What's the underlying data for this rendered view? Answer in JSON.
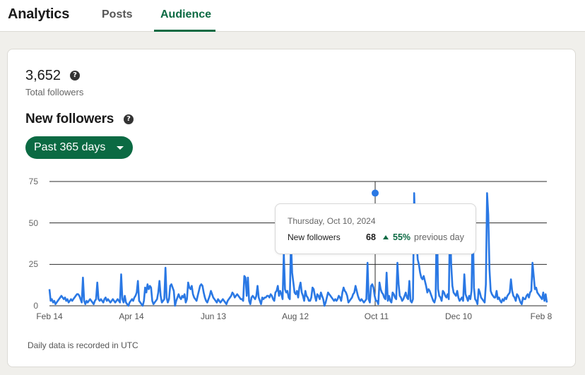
{
  "header": {
    "title": "Analytics",
    "tabs": [
      {
        "label": "Posts",
        "active": false
      },
      {
        "label": "Audience",
        "active": true
      }
    ]
  },
  "summary": {
    "total_followers": "3,652",
    "total_followers_label": "Total followers",
    "help_icon": "?"
  },
  "section": {
    "title": "New followers",
    "help_icon": "?",
    "range_label": "Past 365 days"
  },
  "tooltip": {
    "date": "Thursday, Oct 10, 2024",
    "label": "New followers",
    "value": "68",
    "change": "55%",
    "change_suffix": "previous day",
    "change_direction": "up"
  },
  "footnote": "Daily data is recorded in UTC",
  "colors": {
    "accent": "#0b6a43",
    "line": "#2a78e4",
    "background": "#f0efeb"
  },
  "chart_data": {
    "type": "line",
    "title": "New followers",
    "xlabel": "",
    "ylabel": "",
    "ylim": [
      0,
      75
    ],
    "yticks": [
      0,
      25,
      50,
      75
    ],
    "xtick_labels": [
      "Feb 14",
      "Apr 14",
      "Jun 13",
      "Aug 12",
      "Oct 11",
      "Dec 10",
      "Feb 8"
    ],
    "grid": true,
    "legend": "none",
    "highlight": {
      "date": "Oct 10, 2024",
      "value": 68,
      "change_pct": 55
    },
    "series": [
      {
        "name": "New followers",
        "values": [
          10,
          3,
          4,
          2,
          3,
          1,
          2,
          3,
          4,
          5,
          6,
          5,
          4,
          5,
          3,
          4,
          2,
          3,
          4,
          3,
          4,
          5,
          6,
          7,
          7,
          6,
          4,
          2,
          17,
          3,
          1,
          3,
          2,
          3,
          4,
          3,
          2,
          1,
          3,
          4,
          14,
          4,
          3,
          4,
          3,
          2,
          4,
          5,
          3,
          4,
          3,
          2,
          3,
          4,
          3,
          2,
          3,
          4,
          3,
          2,
          19,
          4,
          2,
          6,
          2,
          1,
          0,
          2,
          3,
          4,
          3,
          5,
          6,
          8,
          15,
          3,
          2,
          1,
          0,
          3,
          11,
          8,
          13,
          10,
          12,
          11,
          3,
          1,
          2,
          3,
          4,
          8,
          15,
          6,
          2,
          3,
          4,
          23,
          5,
          2,
          4,
          12,
          13,
          11,
          9,
          0,
          3,
          5,
          7,
          5,
          4,
          6,
          5,
          7,
          2,
          4,
          14,
          11,
          10,
          12,
          7,
          5,
          4,
          3,
          6,
          9,
          12,
          13,
          12,
          8,
          5,
          3,
          2,
          4,
          6,
          9,
          7,
          5,
          4,
          3,
          2,
          4,
          3,
          2,
          3,
          4,
          3,
          2,
          1,
          3,
          4,
          5,
          6,
          8,
          7,
          5,
          6,
          7,
          6,
          5,
          4,
          4,
          3,
          18,
          17,
          6,
          17,
          3,
          1,
          5,
          6,
          5,
          4,
          6,
          12,
          5,
          3,
          1,
          5,
          4,
          5,
          5,
          6,
          6,
          5,
          7,
          6,
          4,
          3,
          8,
          9,
          12,
          6,
          9,
          7,
          4,
          32,
          10,
          8,
          9,
          5,
          4,
          39,
          20,
          14,
          8,
          7,
          9,
          5,
          11,
          14,
          8,
          6,
          3,
          9,
          6,
          5,
          3,
          3,
          5,
          11,
          10,
          6,
          3,
          7,
          6,
          4,
          8,
          6,
          4,
          0,
          2,
          5,
          8,
          7,
          6,
          5,
          4,
          3,
          4,
          3,
          4,
          6,
          5,
          3,
          8,
          11,
          9,
          8,
          6,
          2,
          3,
          4,
          5,
          7,
          8,
          12,
          9,
          6,
          4,
          3,
          4,
          3,
          2,
          3,
          4,
          26,
          4,
          2,
          12,
          13,
          11,
          6,
          3,
          3,
          1,
          14,
          10,
          8,
          7,
          5,
          4,
          20,
          3,
          6,
          3,
          2,
          8,
          7,
          5,
          4,
          26,
          13,
          6,
          5,
          3,
          4,
          6,
          8,
          5,
          4,
          15,
          3,
          2,
          4,
          68,
          44,
          40,
          28,
          25,
          20,
          17,
          16,
          18,
          15,
          12,
          8,
          10,
          9,
          7,
          5,
          3,
          2,
          5,
          57,
          10,
          6,
          5,
          3,
          9,
          8,
          6,
          5,
          7,
          4,
          52,
          25,
          12,
          8,
          7,
          6,
          9,
          5,
          3,
          4,
          5,
          3,
          19,
          7,
          5,
          3,
          6,
          4,
          9,
          52,
          11,
          4,
          3,
          1,
          10,
          8,
          5,
          4,
          3,
          2,
          13,
          68,
          55,
          22,
          9,
          7,
          6,
          5,
          5,
          9,
          4,
          5,
          3,
          2,
          4,
          3,
          5,
          4,
          6,
          7,
          8,
          16,
          9,
          6,
          5,
          3,
          7,
          6,
          4,
          2,
          1,
          5,
          4,
          4,
          6,
          7,
          5,
          8,
          9,
          26,
          18,
          10,
          11,
          8,
          7,
          6,
          5,
          4,
          8,
          3,
          7,
          2
        ]
      }
    ]
  }
}
